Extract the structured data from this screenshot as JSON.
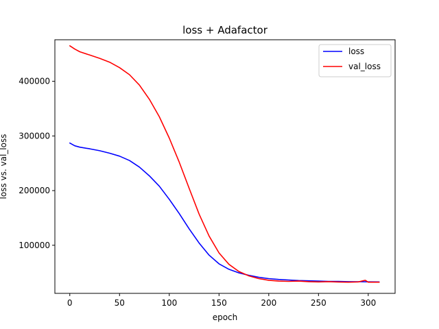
{
  "chart_data": {
    "type": "line",
    "title": "loss + Adafactor",
    "xlabel": "epoch",
    "ylabel": "loss vs. val_loss",
    "xlim": [
      -15,
      327
    ],
    "ylim": [
      12000,
      476000
    ],
    "xticks": [
      0,
      50,
      100,
      150,
      200,
      250,
      300
    ],
    "yticks": [
      100000,
      200000,
      300000,
      400000
    ],
    "ytick_labels": [
      "100000",
      "200000",
      "300000",
      "400000"
    ],
    "grid": false,
    "legend_position": "top-right",
    "series": [
      {
        "name": "loss",
        "color": "#0000ff",
        "points": [
          [
            0,
            287000
          ],
          [
            5,
            282000
          ],
          [
            10,
            279500
          ],
          [
            20,
            276500
          ],
          [
            30,
            273000
          ],
          [
            40,
            268500
          ],
          [
            50,
            263000
          ],
          [
            60,
            255000
          ],
          [
            70,
            243000
          ],
          [
            80,
            227000
          ],
          [
            90,
            208000
          ],
          [
            100,
            184000
          ],
          [
            110,
            158000
          ],
          [
            120,
            130000
          ],
          [
            130,
            104000
          ],
          [
            140,
            82000
          ],
          [
            150,
            66000
          ],
          [
            160,
            56000
          ],
          [
            170,
            49500
          ],
          [
            180,
            45000
          ],
          [
            190,
            41500
          ],
          [
            200,
            39000
          ],
          [
            210,
            37500
          ],
          [
            220,
            36500
          ],
          [
            230,
            35500
          ],
          [
            240,
            35000
          ],
          [
            250,
            34500
          ],
          [
            260,
            34000
          ],
          [
            270,
            33800
          ],
          [
            280,
            33500
          ],
          [
            290,
            33300
          ],
          [
            300,
            33100
          ],
          [
            311,
            33000
          ]
        ]
      },
      {
        "name": "val_loss",
        "color": "#ff0000",
        "points": [
          [
            0,
            465000
          ],
          [
            5,
            459000
          ],
          [
            10,
            454000
          ],
          [
            20,
            448000
          ],
          [
            30,
            442000
          ],
          [
            40,
            435000
          ],
          [
            50,
            425000
          ],
          [
            60,
            412000
          ],
          [
            70,
            393000
          ],
          [
            80,
            367000
          ],
          [
            90,
            335000
          ],
          [
            100,
            296000
          ],
          [
            110,
            252000
          ],
          [
            120,
            204000
          ],
          [
            130,
            157000
          ],
          [
            140,
            117000
          ],
          [
            150,
            86000
          ],
          [
            160,
            65000
          ],
          [
            170,
            52000
          ],
          [
            180,
            44000
          ],
          [
            190,
            39000
          ],
          [
            200,
            36000
          ],
          [
            210,
            34500
          ],
          [
            220,
            34000
          ],
          [
            230,
            34500
          ],
          [
            240,
            33500
          ],
          [
            250,
            33000
          ],
          [
            260,
            33500
          ],
          [
            270,
            32800
          ],
          [
            280,
            32500
          ],
          [
            290,
            33000
          ],
          [
            297,
            36000
          ],
          [
            300,
            32500
          ],
          [
            311,
            32500
          ]
        ]
      }
    ]
  }
}
